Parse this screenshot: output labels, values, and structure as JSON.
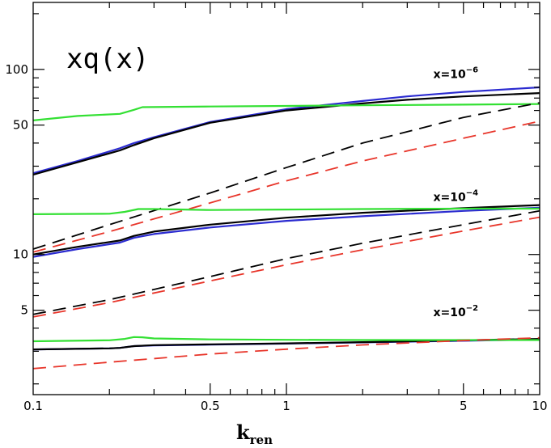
{
  "chart_data": {
    "type": "line",
    "title": "xq(x)",
    "xlabel": "k",
    "xlabel_subscript": "ren",
    "ylabel": "",
    "x_scale": "log",
    "y_scale": "log",
    "xlim": [
      0.1,
      10
    ],
    "ylim": [
      1.75,
      230
    ],
    "x_ticks": [
      {
        "value": 0.1,
        "label": "0.1"
      },
      {
        "value": 0.5,
        "label": "0.5"
      },
      {
        "value": 1,
        "label": "1"
      },
      {
        "value": 5,
        "label": "5"
      },
      {
        "value": 10,
        "label": "10"
      }
    ],
    "y_ticks": [
      {
        "value": 5,
        "label": "5"
      },
      {
        "value": 10,
        "label": "10"
      },
      {
        "value": 50,
        "label": "50"
      },
      {
        "value": 100,
        "label": "100"
      }
    ],
    "annotations": [
      {
        "base": "x=10",
        "exponent": "−6",
        "x": 3.8,
        "y": 90
      },
      {
        "base": "x=10",
        "exponent": "−4",
        "x": 3.8,
        "y": 19.5
      },
      {
        "base": "x=10",
        "exponent": "−2",
        "x": 3.8,
        "y": 4.65
      }
    ],
    "colors": {
      "black": "#000000",
      "blue": "#2b2bd0",
      "red": "#e8352a",
      "green": "#33e033"
    },
    "series": [
      {
        "group": "x=10^-6",
        "color": "blue",
        "dash": false,
        "x": [
          0.1,
          0.15,
          0.22,
          0.25,
          0.3,
          0.5,
          1,
          2,
          3,
          5,
          10
        ],
        "y": [
          27.5,
          32,
          37.5,
          40,
          43,
          52,
          61,
          67.5,
          71.5,
          75.5,
          80
        ]
      },
      {
        "group": "x=10^-6",
        "color": "black",
        "dash": false,
        "x": [
          0.1,
          0.15,
          0.22,
          0.25,
          0.3,
          0.5,
          1,
          2,
          3,
          5,
          10
        ],
        "y": [
          27,
          31.5,
          36.5,
          39,
          42.5,
          51.5,
          60,
          65.5,
          68.5,
          71.5,
          74.5
        ]
      },
      {
        "group": "x=10^-6",
        "color": "green",
        "dash": false,
        "x": [
          0.1,
          0.15,
          0.22,
          0.25,
          0.27,
          0.5,
          1,
          2,
          5,
          10
        ],
        "y": [
          53,
          56,
          57.5,
          60.5,
          62.5,
          63,
          63.5,
          64,
          64.5,
          65
        ]
      },
      {
        "group": "x=10^-6",
        "color": "black",
        "dash": true,
        "x": [
          0.1,
          0.2,
          0.5,
          1,
          2,
          5,
          10
        ],
        "y": [
          10.7,
          14.5,
          21.5,
          29.5,
          40,
          55,
          66
        ]
      },
      {
        "group": "x=10^-6",
        "color": "red",
        "dash": true,
        "x": [
          0.1,
          0.2,
          0.5,
          1,
          2,
          5,
          10
        ],
        "y": [
          10.3,
          13.3,
          19,
          25,
          32,
          42.5,
          52.5
        ]
      },
      {
        "group": "x=10^-4",
        "color": "blue",
        "dash": false,
        "x": [
          0.1,
          0.15,
          0.22,
          0.25,
          0.3,
          0.5,
          1,
          2,
          5,
          10
        ],
        "y": [
          9.7,
          10.7,
          11.6,
          12.3,
          12.9,
          14,
          15.2,
          16.1,
          17.2,
          17.9
        ]
      },
      {
        "group": "x=10^-4",
        "color": "black",
        "dash": false,
        "x": [
          0.1,
          0.15,
          0.22,
          0.25,
          0.3,
          0.5,
          1,
          2,
          5,
          10
        ],
        "y": [
          10,
          11,
          11.9,
          12.6,
          13.3,
          14.5,
          15.8,
          16.8,
          17.8,
          18.5
        ]
      },
      {
        "group": "x=10^-4",
        "color": "green",
        "dash": false,
        "x": [
          0.1,
          0.2,
          0.23,
          0.26,
          0.3,
          0.5,
          1,
          2,
          5,
          10
        ],
        "y": [
          16.5,
          16.6,
          17,
          17.6,
          17.6,
          17.4,
          17.5,
          17.6,
          17.7,
          17.7
        ]
      },
      {
        "group": "x=10^-4",
        "color": "black",
        "dash": true,
        "x": [
          0.1,
          0.2,
          0.5,
          1,
          2,
          5,
          10
        ],
        "y": [
          4.75,
          5.7,
          7.6,
          9.5,
          11.5,
          14.5,
          17.2
        ]
      },
      {
        "group": "x=10^-4",
        "color": "red",
        "dash": true,
        "x": [
          0.1,
          0.2,
          0.5,
          1,
          2,
          5,
          10
        ],
        "y": [
          4.6,
          5.5,
          7.2,
          8.8,
          10.6,
          13.4,
          15.9
        ]
      },
      {
        "group": "x=10^-2",
        "color": "blue",
        "dash": false,
        "x": [
          0.1,
          0.2,
          0.22,
          0.25,
          0.3,
          0.5,
          1,
          2,
          5,
          10
        ],
        "y": [
          3.07,
          3.11,
          3.13,
          3.2,
          3.23,
          3.26,
          3.3,
          3.35,
          3.42,
          3.48
        ]
      },
      {
        "group": "x=10^-2",
        "color": "black",
        "dash": false,
        "x": [
          0.1,
          0.2,
          0.22,
          0.25,
          0.3,
          0.5,
          1,
          2,
          5,
          10
        ],
        "y": [
          3.07,
          3.11,
          3.13,
          3.2,
          3.24,
          3.27,
          3.31,
          3.36,
          3.44,
          3.5
        ]
      },
      {
        "group": "x=10^-2",
        "color": "green",
        "dash": false,
        "x": [
          0.1,
          0.2,
          0.23,
          0.25,
          0.27,
          0.3,
          0.5,
          1,
          2,
          5,
          10
        ],
        "y": [
          3.4,
          3.44,
          3.5,
          3.58,
          3.57,
          3.52,
          3.48,
          3.46,
          3.45,
          3.45,
          3.45
        ]
      },
      {
        "group": "x=10^-2",
        "color": "red",
        "dash": true,
        "x": [
          0.1,
          0.2,
          0.5,
          1,
          2,
          5,
          10
        ],
        "y": [
          2.42,
          2.62,
          2.9,
          3.08,
          3.25,
          3.43,
          3.55
        ]
      }
    ]
  }
}
